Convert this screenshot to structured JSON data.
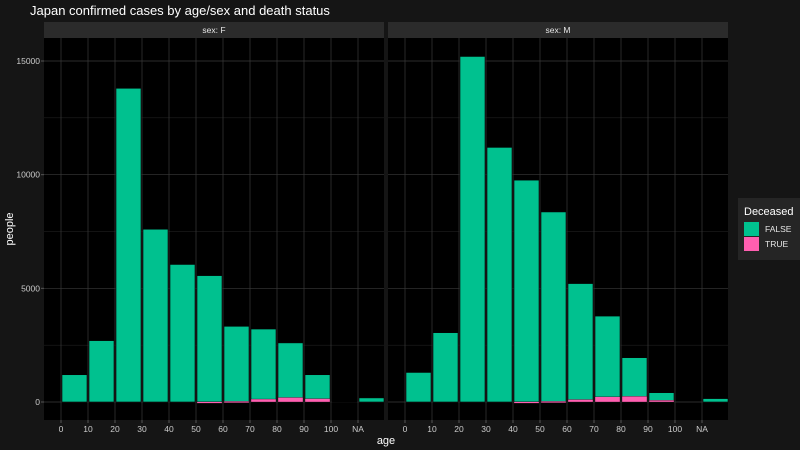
{
  "chart_data": {
    "type": "bar",
    "title": "Japan confirmed cases by age/sex and death status",
    "xlabel": "age",
    "ylabel": "people",
    "ylim": [
      0,
      15800
    ],
    "yticks": [
      0,
      5000,
      10000,
      15000
    ],
    "xticks": [
      "0",
      "10",
      "20",
      "30",
      "40",
      "50",
      "60",
      "70",
      "80",
      "90",
      "100",
      "NA"
    ],
    "grid": true,
    "legend": {
      "title": "Deceased",
      "placement": "right",
      "entries": [
        {
          "label": "FALSE",
          "color": "#00c18f"
        },
        {
          "label": "TRUE",
          "color": "#ff5fb0"
        }
      ]
    },
    "categories": [
      "0",
      "10",
      "20",
      "30",
      "40",
      "50",
      "60",
      "70",
      "80",
      "90",
      "100",
      "NA"
    ],
    "facets": [
      {
        "label": "sex: F",
        "series": [
          {
            "name": "FALSE",
            "values": [
              1200,
              2700,
              13800,
              7600,
              6050,
              5550,
              3300,
              3080,
              2400,
              1050,
              20,
              180
            ]
          },
          {
            "name": "TRUE",
            "values": [
              0,
              0,
              0,
              0,
              0,
              10,
              30,
              130,
              200,
              150,
              0,
              0
            ]
          }
        ]
      },
      {
        "label": "sex: M",
        "series": [
          {
            "name": "FALSE",
            "values": [
              1300,
              3050,
              15200,
              11200,
              9750,
              8330,
              5100,
              3550,
              1700,
              330,
              0,
              150
            ]
          },
          {
            "name": "TRUE",
            "values": [
              0,
              0,
              0,
              0,
              10,
              30,
              110,
              230,
              250,
              80,
              0,
              0
            ]
          }
        ]
      }
    ]
  }
}
